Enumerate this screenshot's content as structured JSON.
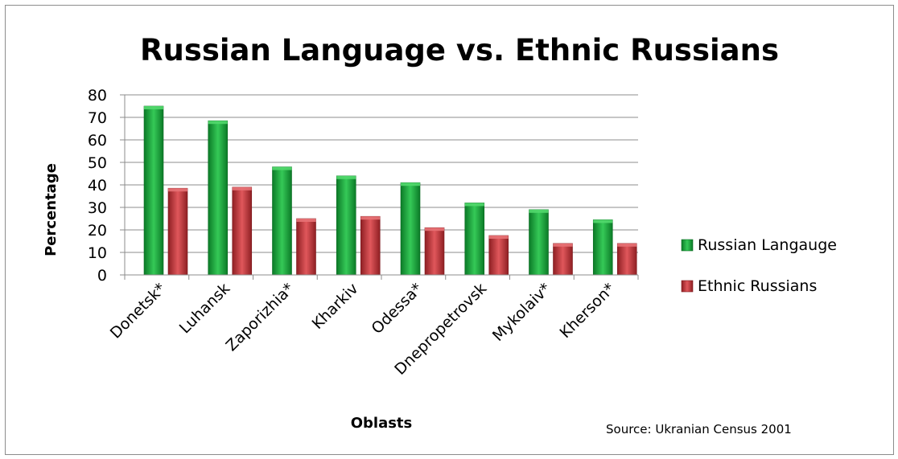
{
  "chart_data": {
    "type": "bar",
    "title": "Russian Language vs. Ethnic Russians",
    "xlabel": "Oblasts",
    "ylabel": "Percentage",
    "ylim": [
      0,
      80
    ],
    "yticks": [
      "0",
      "10",
      "20",
      "30",
      "40",
      "50",
      "60",
      "70",
      "80"
    ],
    "grid": true,
    "legend_position": "right",
    "categories": [
      "Donetsk*",
      "Luhansk",
      "Zaporizhia*",
      "Kharkiv",
      "Odessa*",
      "Dnepropetrovsk",
      "Mykolaiv*",
      "Kherson*"
    ],
    "series": [
      {
        "name": "Russian Langauge",
        "color": "#1aa33a",
        "values": [
          75,
          68.5,
          48,
          44,
          41,
          32,
          29,
          24.5
        ]
      },
      {
        "name": "Ethnic Russians",
        "color": "#c0353a",
        "values": [
          38.5,
          39,
          25,
          26,
          21,
          17.5,
          14,
          14
        ]
      }
    ],
    "source_note": "Source: Ukranian Census 2001"
  }
}
